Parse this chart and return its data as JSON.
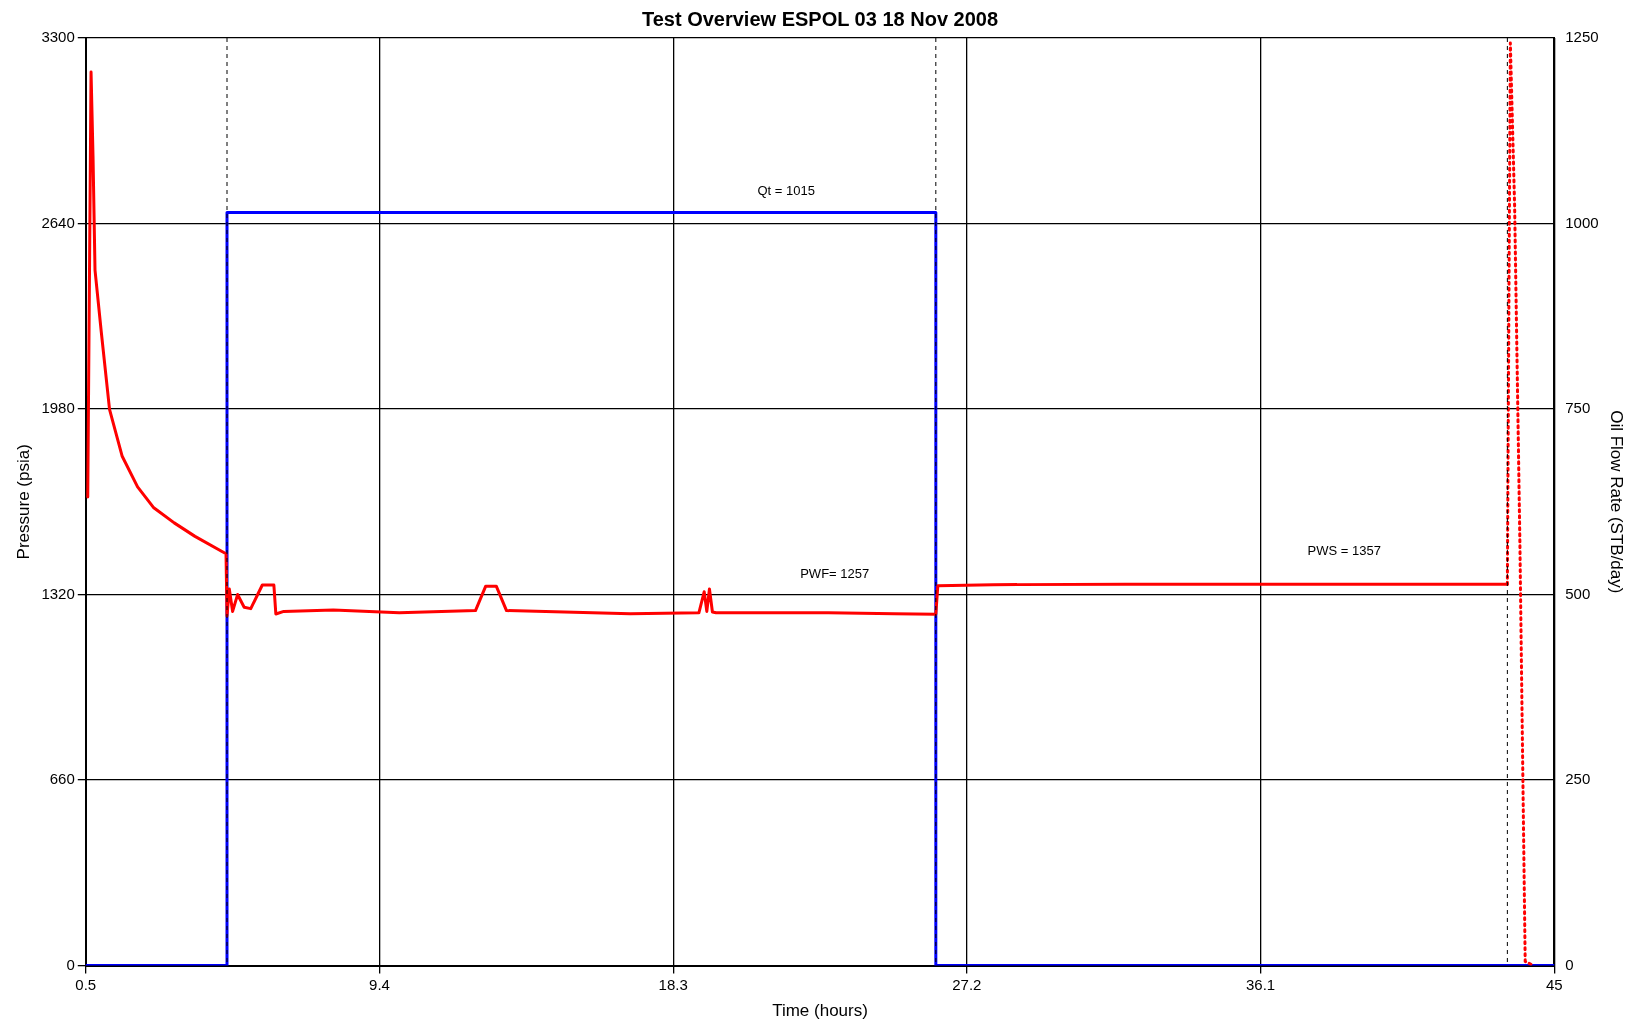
{
  "chart_data": {
    "type": "line",
    "title": "Test Overview ESPOL 03 18 Nov 2008",
    "xlabel": "Time (hours)",
    "ylabel": "Pressure (psia)",
    "y2label": "Oil Flow Rate (STB/day)",
    "xlim": [
      0.5,
      45
    ],
    "xticks": [
      0.5,
      9.4,
      18.3,
      27.2,
      36.1,
      45
    ],
    "ylim": [
      0,
      3300
    ],
    "yticks": [
      0,
      660,
      1320,
      1980,
      2640,
      3300
    ],
    "y2lim": [
      0,
      1250
    ],
    "y2ticks": [
      0,
      250,
      500,
      750,
      1000,
      1250
    ],
    "grid": true,
    "legend": false,
    "marker": "none",
    "series": [
      {
        "type": "line",
        "color": "#ff0000",
        "line_style": "solid",
        "x": [
          0.56,
          0.66,
          0.72,
          0.78,
          0.97,
          1.22,
          1.6,
          2.07,
          2.55,
          3.18,
          3.81,
          4.75,
          4.78,
          4.85,
          4.95,
          5.1,
          5.3,
          5.5,
          5.85,
          6.2,
          6.26,
          6.5,
          8,
          10,
          12.31,
          12.62,
          12.94,
          13.25,
          15,
          17,
          19.08,
          19.24,
          19.32,
          19.4,
          19.49,
          19.6,
          21,
          23,
          25,
          26.26,
          26.32,
          28,
          32,
          36,
          40,
          43.58
        ],
        "values": [
          1667,
          3179,
          2878,
          2474,
          2254,
          1979,
          1813,
          1703,
          1630,
          1575,
          1527,
          1465,
          1244,
          1340,
          1260,
          1320,
          1275,
          1270,
          1354,
          1354,
          1251,
          1260,
          1265,
          1255,
          1263,
          1350,
          1350,
          1263,
          1258,
          1252,
          1255,
          1330,
          1260,
          1340,
          1258,
          1255,
          1255,
          1255,
          1252,
          1250,
          1351,
          1355,
          1357,
          1357,
          1357,
          1357
        ]
      },
      {
        "type": "line",
        "color": "#ff0000",
        "line_style": "dotted",
        "x": [
          43.58,
          43.67,
          43.8,
          43.96,
          44.12,
          44.37
        ],
        "values": [
          1357,
          3282,
          2700,
          1500,
          15,
          0
        ]
      },
      {
        "type": "step",
        "axis": "y2",
        "color": "#0000ff",
        "line_style": "solid",
        "x": [
          0.5,
          4.78,
          26.26,
          45
        ],
        "values": [
          0,
          1015,
          0,
          0
        ]
      }
    ],
    "ref_lines": [
      {
        "axis": "x",
        "value": 4.78,
        "color": "#000000",
        "line_style": "dashed"
      },
      {
        "axis": "x",
        "value": 26.26,
        "color": "#000000",
        "line_style": "dashed"
      },
      {
        "axis": "x",
        "value": 43.58,
        "color": "#000000",
        "line_style": "dashed"
      }
    ],
    "annotations": [
      "Qt = 1015",
      "PWF= 1257",
      "PWS = 1357"
    ]
  }
}
